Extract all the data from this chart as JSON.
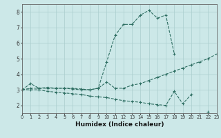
{
  "xlabel": "Humidex (Indice chaleur)",
  "x_values": [
    0,
    1,
    2,
    3,
    4,
    5,
    6,
    7,
    8,
    9,
    10,
    11,
    12,
    13,
    14,
    15,
    16,
    17,
    18,
    19,
    20,
    21,
    22,
    23
  ],
  "line1": [
    3.0,
    3.4,
    3.1,
    3.1,
    3.1,
    3.1,
    3.05,
    3.0,
    3.0,
    3.1,
    4.8,
    6.5,
    7.2,
    7.2,
    7.8,
    8.1,
    7.6,
    7.8,
    5.3,
    null,
    null,
    null,
    null,
    null
  ],
  "line2": [
    3.0,
    3.1,
    3.1,
    3.15,
    3.1,
    3.1,
    3.1,
    3.05,
    3.0,
    3.1,
    3.5,
    3.1,
    3.1,
    3.3,
    3.4,
    3.6,
    3.8,
    4.0,
    4.2,
    4.4,
    4.6,
    4.8,
    5.0,
    5.3
  ],
  "line3": [
    3.0,
    3.0,
    3.0,
    2.9,
    2.85,
    2.8,
    2.75,
    2.7,
    2.6,
    2.55,
    2.5,
    2.4,
    2.3,
    2.25,
    2.2,
    2.1,
    2.05,
    2.0,
    2.9,
    2.1,
    2.7,
    null,
    1.6,
    null
  ],
  "bg_color": "#cce8e8",
  "line_color": "#2e6e62",
  "grid_color": "#aacece",
  "ylim": [
    1.5,
    8.5
  ],
  "xlim": [
    0,
    23
  ],
  "yticks": [
    2,
    3,
    4,
    5,
    6,
    7,
    8
  ],
  "xticks": [
    0,
    1,
    2,
    3,
    4,
    5,
    6,
    7,
    8,
    9,
    10,
    11,
    12,
    13,
    14,
    15,
    16,
    17,
    18,
    19,
    20,
    21,
    22,
    23
  ]
}
